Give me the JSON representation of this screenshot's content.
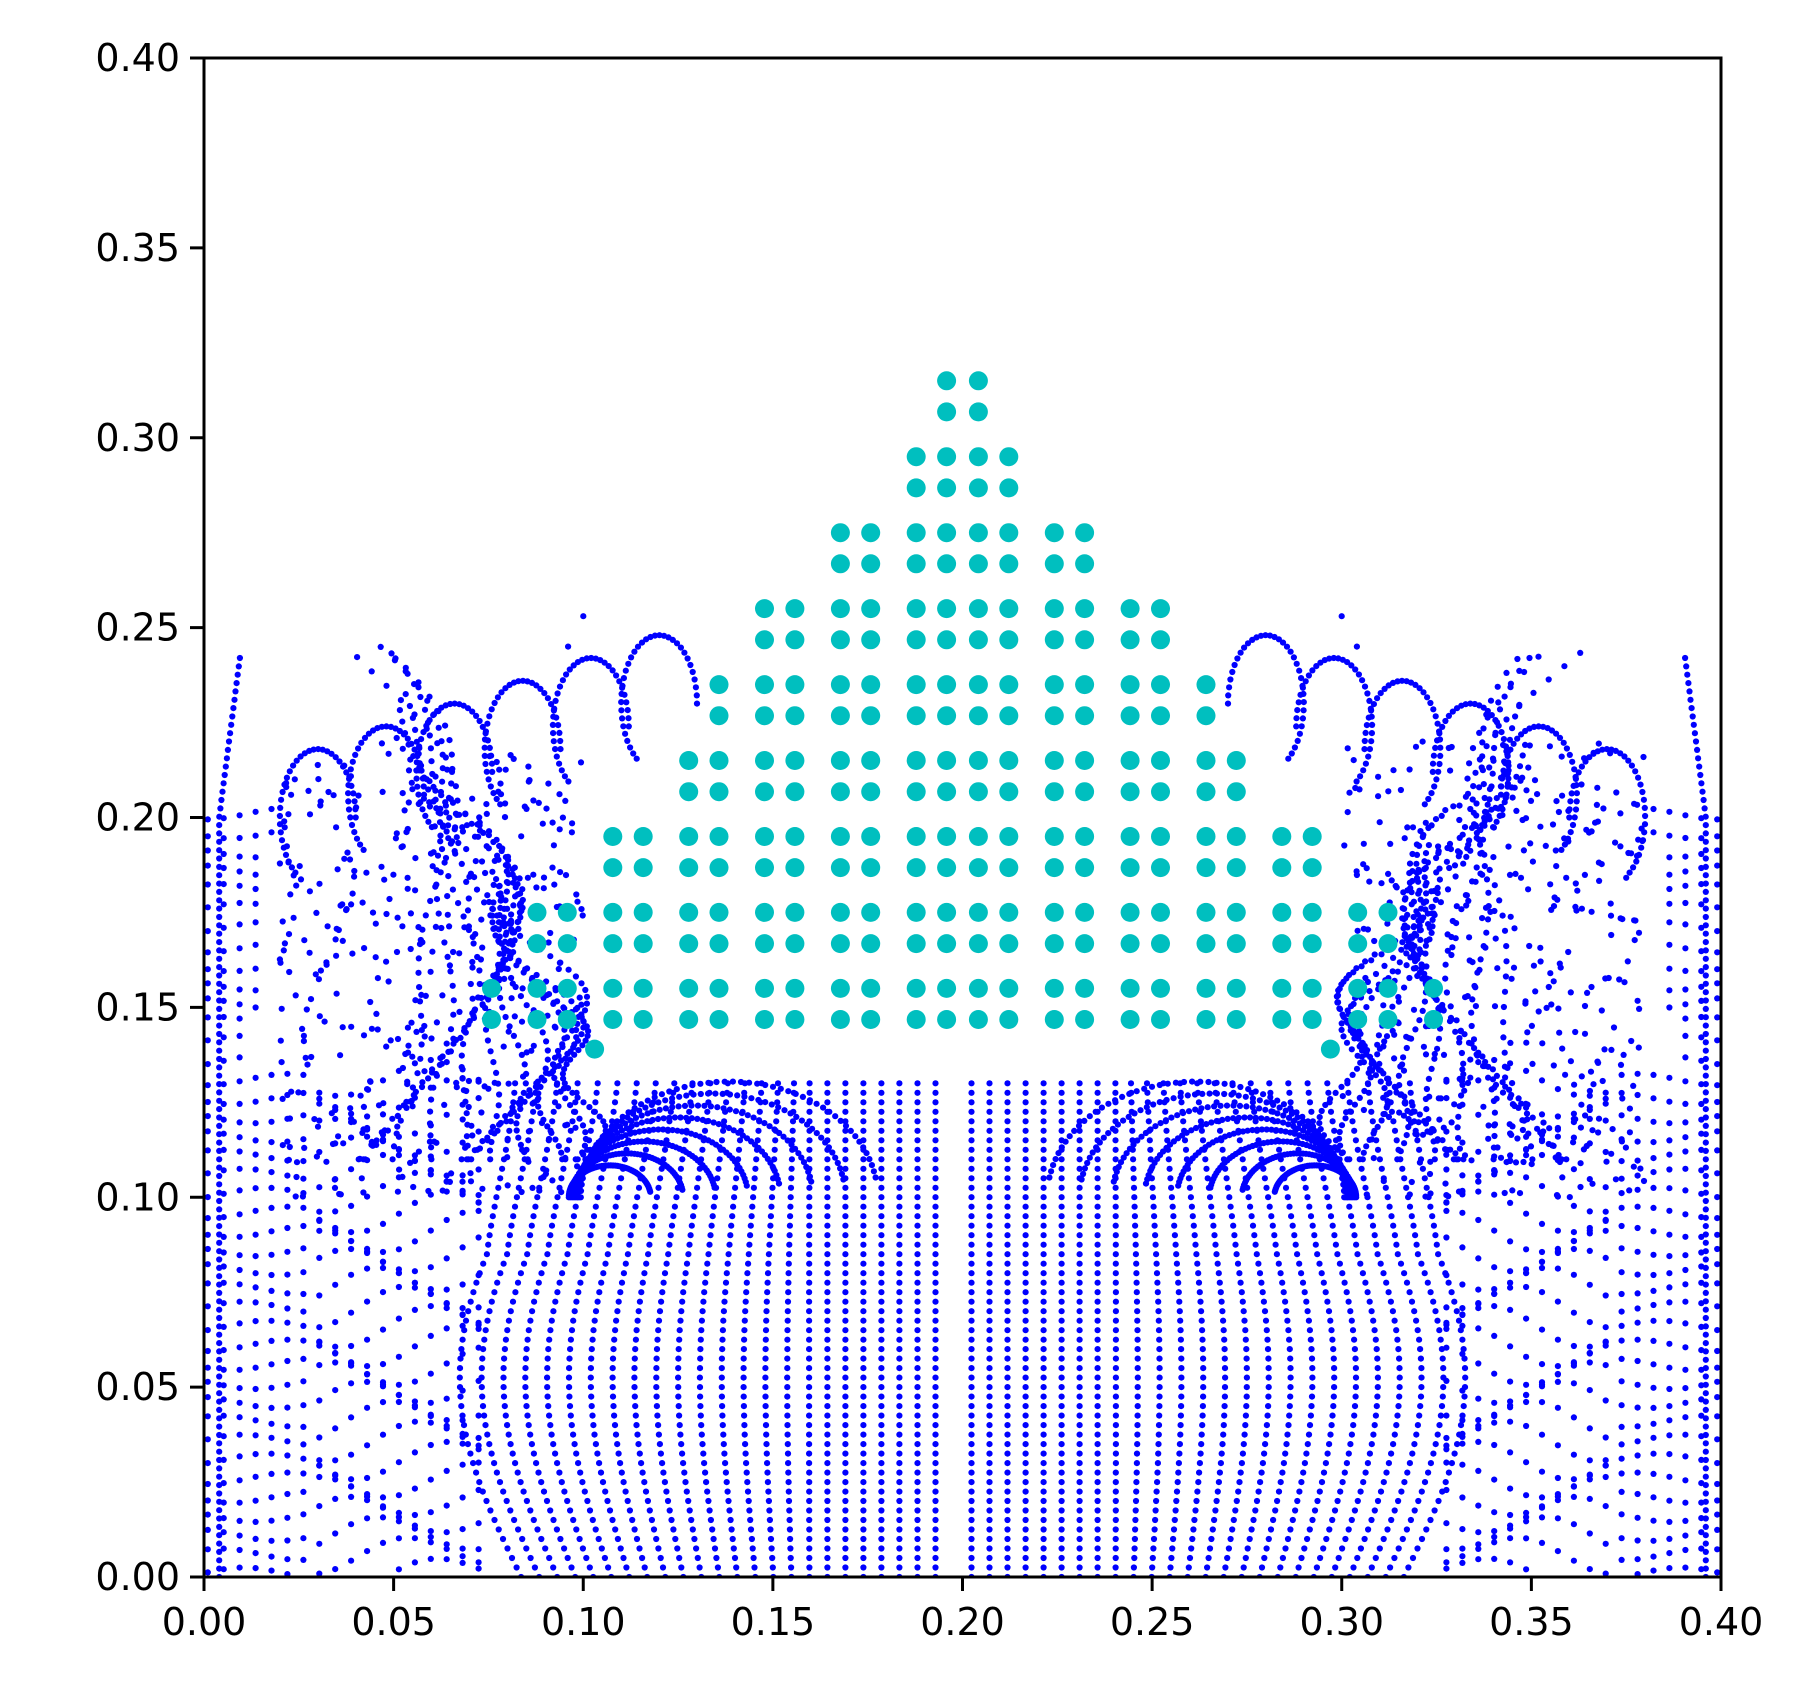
{
  "chart_data": {
    "type": "scatter",
    "title": "",
    "xlabel": "",
    "ylabel": "",
    "xlim": [
      0.0,
      0.4
    ],
    "ylim": [
      0.0,
      0.4
    ],
    "grid": false,
    "x_ticks": [
      "0.00",
      "0.05",
      "0.10",
      "0.15",
      "0.20",
      "0.25",
      "0.30",
      "0.35",
      "0.40"
    ],
    "y_ticks": [
      "0.00",
      "0.05",
      "0.10",
      "0.15",
      "0.20",
      "0.25",
      "0.30",
      "0.35",
      "0.40"
    ],
    "colors": {
      "fluid": "#0000ff",
      "solid": "#00bfbf",
      "axes": "#000000"
    },
    "solid_block": {
      "apex_x": 0.2,
      "top_y": 0.315,
      "bottom_y": 0.137,
      "row_spacing": 0.0082,
      "col_spacing": 0.0082,
      "side_slope": 0.6,
      "extra_bottom_points": [
        [
          0.103,
          0.139
        ],
        [
          0.297,
          0.139
        ]
      ]
    },
    "fluid_particles": {
      "x_range": [
        0.0,
        0.4
      ],
      "y_range": [
        0.0,
        0.131
      ],
      "spacing_x": 0.00475,
      "spacing_y": 0.0025,
      "wall_height": 0.2,
      "splash_top_y": 0.245,
      "cavity_edge_left_x": 0.1,
      "cavity_edge_right_x": 0.3
    }
  }
}
